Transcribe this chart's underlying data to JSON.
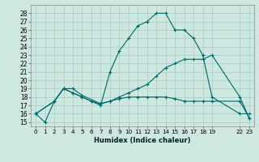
{
  "xlabel": "Humidex (Indice chaleur)",
  "bg_color": "#cce8e0",
  "grid_color": "#a8ccc8",
  "line_color": "#006868",
  "xlim": [
    -0.5,
    23.5
  ],
  "ylim": [
    14.5,
    29.0
  ],
  "yticks": [
    15,
    16,
    17,
    18,
    19,
    20,
    21,
    22,
    23,
    24,
    25,
    26,
    27,
    28
  ],
  "xtick_positions": [
    0,
    1,
    2,
    3,
    4,
    5,
    6,
    7,
    8,
    9,
    10,
    11,
    12,
    13,
    14,
    15,
    16,
    17,
    18,
    19,
    22,
    23
  ],
  "xtick_labels": [
    "0",
    "1",
    "2",
    "3",
    "4",
    "5",
    "6",
    "7",
    "8",
    "9",
    "10",
    "11",
    "12",
    "13",
    "14",
    "15",
    "16",
    "17",
    "18",
    "19",
    "22",
    "23"
  ],
  "line1_x": [
    0,
    1,
    2,
    3,
    4,
    5,
    6,
    7,
    8,
    9,
    10,
    11,
    12,
    13,
    14,
    15,
    16,
    17,
    18,
    19,
    22,
    23
  ],
  "line1_y": [
    16,
    15,
    17.5,
    19,
    18.5,
    18.0,
    17.5,
    17.0,
    21.0,
    23.5,
    25.0,
    26.5,
    27.0,
    28.0,
    28.0,
    26.0,
    26.0,
    25.0,
    23.0,
    18.0,
    16.0,
    16.0
  ],
  "line2_x": [
    0,
    2,
    3,
    4,
    5,
    7,
    8,
    9,
    10,
    11,
    12,
    13,
    14,
    15,
    16,
    17,
    18,
    19,
    22,
    23
  ],
  "line2_y": [
    16,
    17.5,
    19.0,
    19.0,
    18.2,
    17.2,
    17.5,
    18.0,
    18.5,
    19.0,
    19.5,
    20.5,
    21.5,
    22.0,
    22.5,
    22.5,
    22.5,
    23.0,
    18.0,
    15.5
  ],
  "line3_x": [
    0,
    2,
    3,
    4,
    5,
    6,
    7,
    8,
    9,
    10,
    11,
    12,
    13,
    14,
    15,
    16,
    17,
    18,
    19,
    22,
    23
  ],
  "line3_y": [
    16,
    17.5,
    19.0,
    18.5,
    18.0,
    17.5,
    17.2,
    17.5,
    17.8,
    18.0,
    18.0,
    18.0,
    18.0,
    18.0,
    17.8,
    17.5,
    17.5,
    17.5,
    17.5,
    17.5,
    15.5
  ]
}
